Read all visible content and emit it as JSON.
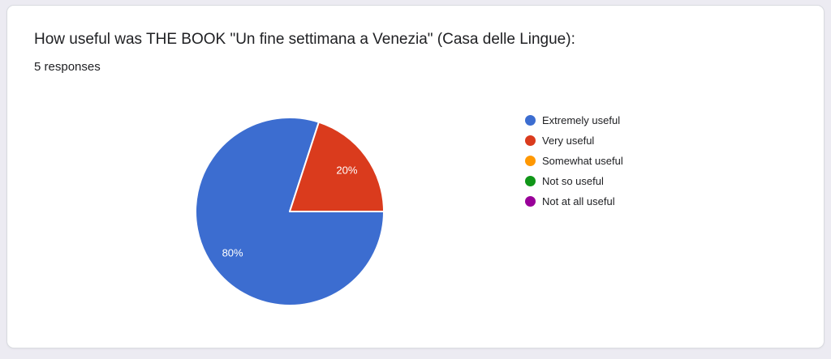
{
  "window": {
    "background_color": "#ecebf2",
    "card_color": "#ffffff"
  },
  "card": {
    "title": "How useful was THE BOOK \"Un fine settimana a Venezia\" (Casa delle Lingue):",
    "responses_label": "5 responses"
  },
  "chart_data": {
    "type": "pie",
    "title": "How useful was THE BOOK \"Un fine settimana a Venezia\" (Casa delle Lingue):",
    "subtitle": "5 responses",
    "legend_position": "right",
    "start_angle": "3-oclock",
    "direction": "clockwise",
    "slice_label_color": "#ffffff",
    "slices": [
      {
        "label": "Extremely useful",
        "percent": 80,
        "percent_label": "80%",
        "color": "#3c6dd0"
      },
      {
        "label": "Very useful",
        "percent": 20,
        "percent_label": "20%",
        "color": "#da3b1d"
      },
      {
        "label": "Somewhat useful",
        "percent": 0,
        "percent_label": "",
        "color": "#ff9802"
      },
      {
        "label": "Not so useful",
        "percent": 0,
        "percent_label": "",
        "color": "#109618"
      },
      {
        "label": "Not at all useful",
        "percent": 0,
        "percent_label": "",
        "color": "#990099"
      }
    ]
  }
}
